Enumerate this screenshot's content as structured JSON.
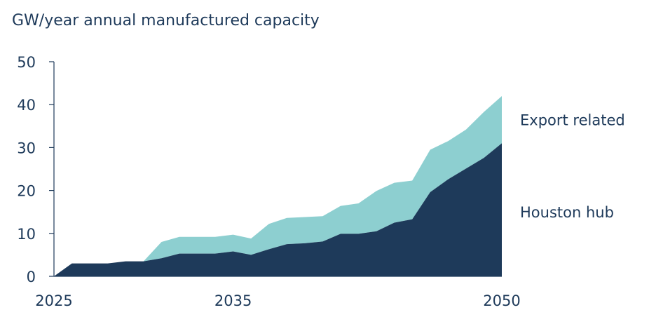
{
  "chart_data": {
    "type": "area",
    "stacked": true,
    "title": "GW/year annual manufactured capacity",
    "xlabel": "",
    "ylabel": "GW/year annual manufactured capacity",
    "xlim": [
      2025,
      2050
    ],
    "ylim": [
      0,
      50
    ],
    "x_ticks": [
      "2025",
      "2035",
      "2050"
    ],
    "y_ticks": [
      "0",
      "10",
      "20",
      "30",
      "40",
      "50"
    ],
    "x": [
      2025,
      2026,
      2027,
      2028,
      2029,
      2030,
      2031,
      2032,
      2033,
      2034,
      2035,
      2036,
      2037,
      2038,
      2039,
      2040,
      2041,
      2042,
      2043,
      2044,
      2045,
      2046,
      2047,
      2048,
      2049,
      2050
    ],
    "series": [
      {
        "name": "Houston hub",
        "color": "#1e3a5a",
        "values": [
          0,
          3,
          3,
          3,
          3.5,
          3.5,
          4.2,
          5.3,
          5.3,
          5.3,
          5.8,
          5,
          6.3,
          7.5,
          7.7,
          8.1,
          9.9,
          9.9,
          10.5,
          12.5,
          13.3,
          19.6,
          22.6,
          25.1,
          27.6,
          31
        ]
      },
      {
        "name": "Export related",
        "color": "#8dcfd0",
        "values": [
          0,
          0,
          0,
          0,
          0,
          0,
          3.8,
          3.9,
          3.9,
          3.9,
          3.9,
          3.8,
          5.9,
          6.1,
          6.1,
          5.9,
          6.5,
          7.1,
          9.4,
          9.3,
          9.0,
          9.9,
          8.9,
          9.1,
          10.7,
          11.0
        ]
      }
    ],
    "grid": false,
    "legend_position": "right"
  }
}
